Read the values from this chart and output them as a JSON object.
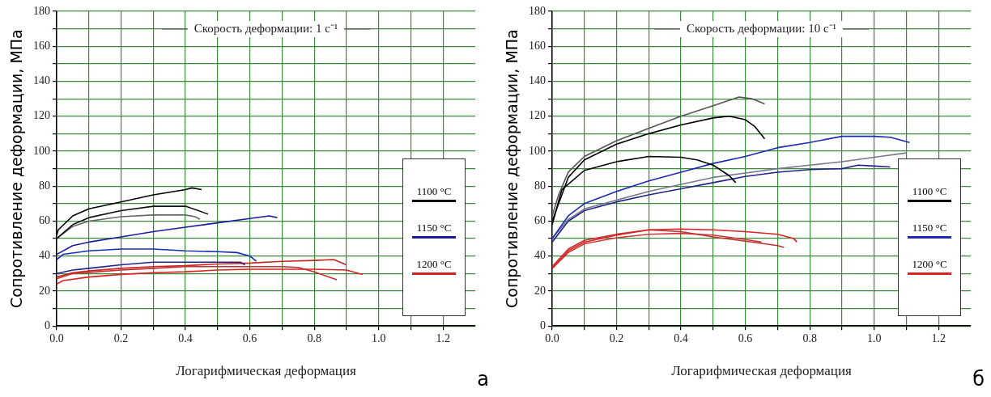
{
  "chart_data": [
    {
      "type": "line",
      "ylabel": "Сопротивление деформации, МПа",
      "xlabel": "Логарифмическая деформация",
      "annotations": [
        "Скорость деформации: 1 с⁻¹",
        "а"
      ],
      "xlim": [
        0,
        1.3
      ],
      "ylim": [
        0,
        180
      ],
      "xticks": [
        {
          "value": 0,
          "label": "0.0"
        },
        {
          "value": 0.1,
          "label": null
        },
        0.2,
        {
          "value": 0.3,
          "label": null
        },
        0.4,
        {
          "value": 0.5,
          "label": null
        },
        0.6,
        {
          "value": 0.7,
          "label": null
        },
        0.8,
        {
          "value": 0.9,
          "label": null
        },
        {
          "value": 1.0,
          "label": "1.0"
        },
        {
          "value": 1.1,
          "label": null
        },
        1.2
      ],
      "yticks": [
        0,
        {
          "value": 10,
          "label": null
        },
        20,
        {
          "value": 30,
          "label": null
        },
        40,
        {
          "value": 50,
          "label": null
        },
        60,
        {
          "value": 70,
          "label": null
        },
        80,
        {
          "value": 90,
          "label": null
        },
        100,
        {
          "value": 110,
          "label": null
        },
        120,
        {
          "value": 130,
          "label": null
        },
        140,
        {
          "value": 150,
          "label": null
        },
        160,
        {
          "value": 170,
          "label": null
        },
        180
      ],
      "grid": true,
      "legend": "right",
      "marker": "none",
      "line_style": "solid",
      "series": [
        {
          "name": "1100 °C",
          "color": "#000000",
          "x": [
            0,
            0.005,
            0.05,
            0.1,
            0.2,
            0.3,
            0.4,
            0.42,
            0.45
          ],
          "values": [
            52,
            55,
            63,
            67,
            71,
            75,
            78,
            79,
            78
          ]
        },
        {
          "color": "#111111",
          "x": [
            0,
            0.05,
            0.1,
            0.2,
            0.3,
            0.4,
            0.44,
            0.47
          ],
          "values": [
            50,
            58,
            62,
            66,
            68.5,
            68.5,
            66,
            64
          ]
        },
        {
          "color": "#666666",
          "x": [
            0,
            0.05,
            0.1,
            0.2,
            0.3,
            0.4,
            0.43,
            0.445
          ],
          "values": [
            50,
            57,
            60,
            62.5,
            63.5,
            63.5,
            62.5,
            61
          ]
        },
        {
          "name": "1150 °C",
          "color": "#1c1c9a",
          "x": [
            0,
            0.05,
            0.1,
            0.2,
            0.3,
            0.4,
            0.5,
            0.6,
            0.66,
            0.685
          ],
          "values": [
            41,
            46,
            48,
            51,
            54,
            56.5,
            59,
            61.5,
            63,
            62
          ]
        },
        {
          "color": "#1530b0",
          "x": [
            0,
            0.02,
            0.1,
            0.2,
            0.3,
            0.4,
            0.5,
            0.56,
            0.6,
            0.62
          ],
          "values": [
            38,
            41,
            43,
            44,
            44,
            43,
            42.5,
            42,
            40,
            37
          ]
        },
        {
          "color": "#22228a",
          "x": [
            0,
            0.05,
            0.1,
            0.2,
            0.3,
            0.4,
            0.5,
            0.57,
            0.585
          ],
          "values": [
            30,
            32,
            33,
            35,
            36.5,
            36.5,
            36.5,
            36.5,
            35
          ]
        },
        {
          "name": "1200 °C",
          "color": "#cc2222",
          "x": [
            0,
            0.05,
            0.1,
            0.2,
            0.3,
            0.4,
            0.5,
            0.6,
            0.7,
            0.8,
            0.86,
            0.9
          ],
          "values": [
            28,
            30.5,
            31.5,
            33,
            34,
            34.5,
            35.5,
            36,
            37,
            37.5,
            38,
            35
          ]
        },
        {
          "color": "#c03030",
          "x": [
            0,
            0.05,
            0.2,
            0.3,
            0.4,
            0.5,
            0.6,
            0.7,
            0.75,
            0.8,
            0.87
          ],
          "values": [
            27,
            30,
            32,
            33,
            34,
            34,
            34,
            34,
            33.5,
            31,
            26.5
          ]
        },
        {
          "color": "#dd2020",
          "x": [
            0,
            0.02,
            0.1,
            0.2,
            0.3,
            0.4,
            0.5,
            0.6,
            0.7,
            0.8,
            0.9,
            0.95
          ],
          "values": [
            24,
            26,
            28,
            29.5,
            30.5,
            31,
            32,
            32.5,
            32.5,
            32.5,
            32,
            29.5
          ]
        }
      ]
    },
    {
      "type": "line",
      "ylabel": "Сопротивление деформации, МПа",
      "xlabel": "Логарифмическая деформация",
      "annotations": [
        "Скорость деформации: 10 с⁻¹",
        "б"
      ],
      "xlim": [
        0,
        1.3
      ],
      "ylim": [
        0,
        180
      ],
      "xticks": [
        {
          "value": 0,
          "label": "0.0"
        },
        {
          "value": 0.1,
          "label": null
        },
        0.2,
        {
          "value": 0.3,
          "label": null
        },
        0.4,
        {
          "value": 0.5,
          "label": null
        },
        0.6,
        {
          "value": 0.7,
          "label": null
        },
        0.8,
        {
          "value": 0.9,
          "label": null
        },
        {
          "value": 1.0,
          "label": "1.0"
        },
        {
          "value": 1.1,
          "label": null
        },
        1.2
      ],
      "yticks": [
        0,
        {
          "value": 10,
          "label": null
        },
        20,
        {
          "value": 30,
          "label": null
        },
        40,
        {
          "value": 50,
          "label": null
        },
        60,
        {
          "value": 70,
          "label": null
        },
        80,
        {
          "value": 90,
          "label": null
        },
        100,
        {
          "value": 110,
          "label": null
        },
        120,
        {
          "value": 130,
          "label": null
        },
        140,
        {
          "value": 150,
          "label": null
        },
        160,
        {
          "value": 170,
          "label": null
        },
        180
      ],
      "grid": true,
      "legend": "right",
      "marker": "none",
      "line_style": "solid",
      "series": [
        {
          "name": "1100 °C",
          "color": "#000000",
          "x": [
            0,
            0.05,
            0.1,
            0.2,
            0.3,
            0.4,
            0.5,
            0.55,
            0.6,
            0.63,
            0.66
          ],
          "values": [
            60,
            85,
            95,
            104,
            110,
            115,
            119,
            120,
            118,
            114,
            107
          ]
        },
        {
          "color": "#555555",
          "x": [
            0,
            0.02,
            0.05,
            0.1,
            0.2,
            0.3,
            0.4,
            0.5,
            0.58,
            0.62,
            0.66
          ],
          "values": [
            63,
            75,
            88,
            97,
            106,
            113,
            120,
            126,
            131,
            130,
            127
          ]
        },
        {
          "color": "#000000",
          "x": [
            0,
            0.03,
            0.1,
            0.2,
            0.3,
            0.4,
            0.45,
            0.5,
            0.55,
            0.57
          ],
          "values": [
            58,
            78,
            89,
            94,
            97,
            96.5,
            95,
            92,
            86,
            82
          ]
        },
        {
          "name": "1150 °C",
          "color": "#1c2ab0",
          "x": [
            0,
            0.05,
            0.1,
            0.2,
            0.3,
            0.4,
            0.5,
            0.6,
            0.7,
            0.8,
            0.9,
            1.0,
            1.05,
            1.11
          ],
          "values": [
            50,
            63,
            70,
            77,
            83,
            88,
            93,
            97,
            102,
            105,
            108.5,
            108.5,
            108,
            105
          ]
        },
        {
          "color": "#77778f",
          "x": [
            0,
            0.05,
            0.1,
            0.2,
            0.3,
            0.4,
            0.5,
            0.6,
            0.7,
            0.8,
            0.9,
            1.0,
            1.1
          ],
          "values": [
            50,
            61,
            67,
            72,
            77,
            81,
            85,
            87.5,
            90,
            92,
            94,
            96.5,
            99
          ]
        },
        {
          "color": "#22228a",
          "x": [
            0,
            0.05,
            0.1,
            0.2,
            0.3,
            0.4,
            0.5,
            0.6,
            0.7,
            0.8,
            0.9,
            0.95,
            1.0,
            1.05
          ],
          "values": [
            48,
            60,
            66,
            71,
            75,
            78.5,
            82,
            85.5,
            88,
            89.5,
            90,
            92,
            91.5,
            91
          ]
        },
        {
          "name": "1200 °C",
          "color": "#dd2020",
          "x": [
            0,
            0.05,
            0.1,
            0.2,
            0.3,
            0.4,
            0.5,
            0.6,
            0.7,
            0.75,
            0.76
          ],
          "values": [
            33,
            43,
            48,
            52,
            55,
            55.5,
            55,
            54,
            52.5,
            50,
            48
          ]
        },
        {
          "color": "#c03030",
          "x": [
            0,
            0.05,
            0.1,
            0.2,
            0.3,
            0.4,
            0.5,
            0.6,
            0.7,
            0.72
          ],
          "values": [
            34,
            44,
            49,
            52.5,
            55,
            54,
            51,
            48.5,
            46,
            45
          ]
        },
        {
          "color": "#cc3a3a",
          "x": [
            0,
            0.05,
            0.1,
            0.2,
            0.3,
            0.4,
            0.5,
            0.6,
            0.65
          ],
          "values": [
            33,
            42,
            47,
            50.5,
            52.5,
            53,
            52,
            49.5,
            48
          ]
        }
      ]
    }
  ]
}
